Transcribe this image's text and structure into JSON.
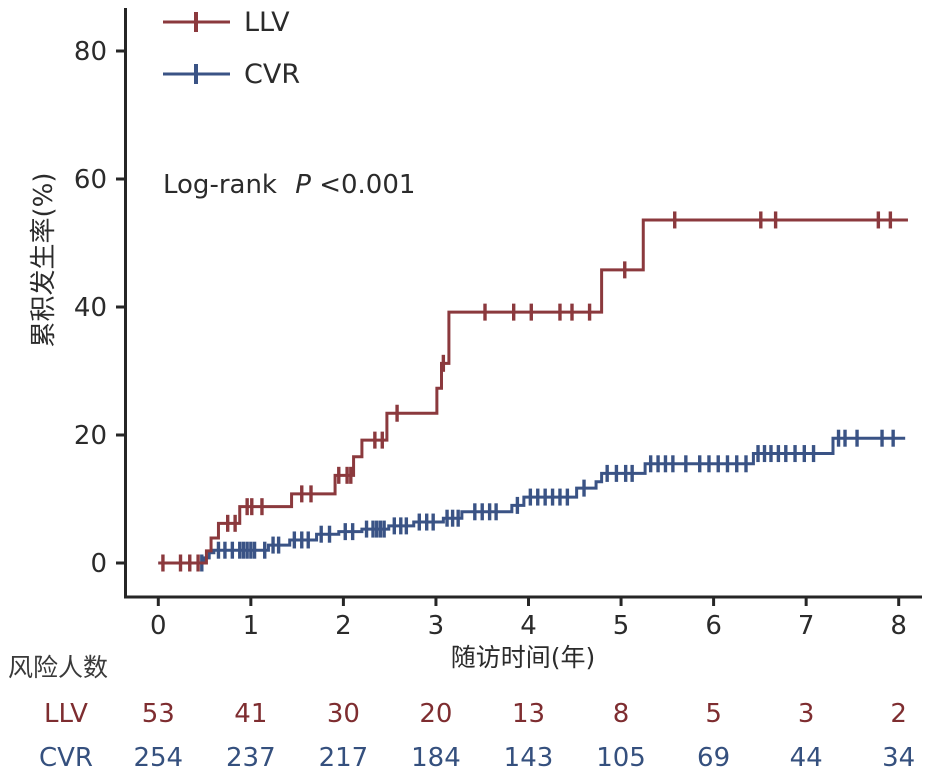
{
  "colors": {
    "axis": "#262626",
    "text": "#2b2b2b",
    "risk_header_text": "#3a3a3a",
    "llv": "#8B393D",
    "cvr": "#3A5385"
  },
  "annotation": {
    "prefix": "Log-rank",
    "p": "P",
    "rest": "<0.001"
  },
  "chart_data": {
    "type": "line",
    "subtype": "step-cumulative-incidence",
    "title": "",
    "xlabel": "随访时间(年)",
    "ylabel": "累积发生率(%)",
    "xlim": [
      0,
      8.2
    ],
    "ylim": [
      0,
      86
    ],
    "xticks": [
      0,
      1,
      2,
      3,
      4,
      5,
      6,
      7,
      8
    ],
    "yticks": [
      0,
      20,
      40,
      60,
      80
    ],
    "grid": false,
    "legend_position": "top-left-inside",
    "annotation_text": "Log-rank P<0.001",
    "series": [
      {
        "name": "CVR",
        "color": "#3A5385",
        "end": 8.07,
        "steps": [
          [
            0,
            0
          ],
          [
            0.5,
            0.8
          ],
          [
            0.55,
            1.6
          ],
          [
            0.6,
            2.0
          ],
          [
            1.19,
            2.8
          ],
          [
            1.42,
            3.6
          ],
          [
            1.71,
            4.5
          ],
          [
            1.95,
            4.9
          ],
          [
            2.2,
            5.3
          ],
          [
            2.49,
            5.8
          ],
          [
            2.76,
            6.4
          ],
          [
            3.08,
            7.0
          ],
          [
            3.28,
            8.0
          ],
          [
            3.82,
            9.0
          ],
          [
            3.95,
            10.3
          ],
          [
            4.52,
            11.7
          ],
          [
            4.73,
            12.7
          ],
          [
            4.79,
            14.0
          ],
          [
            5.26,
            15.5
          ],
          [
            6.43,
            17.1
          ],
          [
            7.29,
            19.5
          ]
        ],
        "censors": [
          0.47,
          0.65,
          0.72,
          0.8,
          0.88,
          0.92,
          0.96,
          1.0,
          1.04,
          1.15,
          1.24,
          1.3,
          1.47,
          1.55,
          1.62,
          1.76,
          1.85,
          2.02,
          2.1,
          2.25,
          2.32,
          2.36,
          2.4,
          2.44,
          2.55,
          2.62,
          2.68,
          2.82,
          2.9,
          2.97,
          3.12,
          3.18,
          3.24,
          3.42,
          3.5,
          3.58,
          3.65,
          3.88,
          4.02,
          4.1,
          4.18,
          4.26,
          4.34,
          4.42,
          4.6,
          4.85,
          4.95,
          5.05,
          5.12,
          5.32,
          5.4,
          5.48,
          5.56,
          5.7,
          5.85,
          5.95,
          6.05,
          6.15,
          6.25,
          6.35,
          6.48,
          6.55,
          6.62,
          6.7,
          6.78,
          6.88,
          6.98,
          7.08,
          7.35,
          7.42,
          7.55,
          7.82,
          7.94
        ]
      },
      {
        "name": "LLV",
        "color": "#8B393D",
        "end": 8.1,
        "steps": [
          [
            0,
            0
          ],
          [
            0.52,
            1.9
          ],
          [
            0.57,
            3.9
          ],
          [
            0.65,
            6.2
          ],
          [
            0.88,
            8.8
          ],
          [
            1.44,
            10.8
          ],
          [
            1.91,
            13.7
          ],
          [
            2.11,
            16.6
          ],
          [
            2.2,
            19.2
          ],
          [
            2.47,
            23.4
          ],
          [
            3.01,
            27.3
          ],
          [
            3.06,
            31.2
          ],
          [
            3.14,
            39.2
          ],
          [
            4.79,
            45.8
          ],
          [
            5.24,
            53.6
          ]
        ],
        "censors": [
          0.05,
          0.24,
          0.34,
          0.43,
          0.75,
          0.83,
          0.96,
          1.01,
          1.12,
          1.55,
          1.65,
          1.95,
          2.04,
          2.08,
          2.34,
          2.42,
          2.58,
          3.08,
          3.53,
          3.84,
          4.03,
          4.34,
          4.47,
          4.66,
          5.04,
          5.58,
          6.51,
          6.67,
          7.78,
          7.91
        ]
      }
    ],
    "legend": [
      {
        "label": "LLV",
        "color": "#8B393D"
      },
      {
        "label": "CVR",
        "color": "#3A5385"
      }
    ],
    "risk_table": {
      "header": "风险人数",
      "times": [
        0,
        1,
        2,
        3,
        4,
        5,
        6,
        7,
        8
      ],
      "rows": [
        {
          "name": "LLV",
          "color": "#7E2D30",
          "values": [
            "53",
            "41",
            "30",
            "20",
            "13",
            "8",
            "5",
            "3",
            "2"
          ]
        },
        {
          "name": "CVR",
          "color": "#35507E",
          "values": [
            "254",
            "237",
            "217",
            "184",
            "143",
            "105",
            "69",
            "44",
            "34"
          ]
        }
      ]
    }
  }
}
